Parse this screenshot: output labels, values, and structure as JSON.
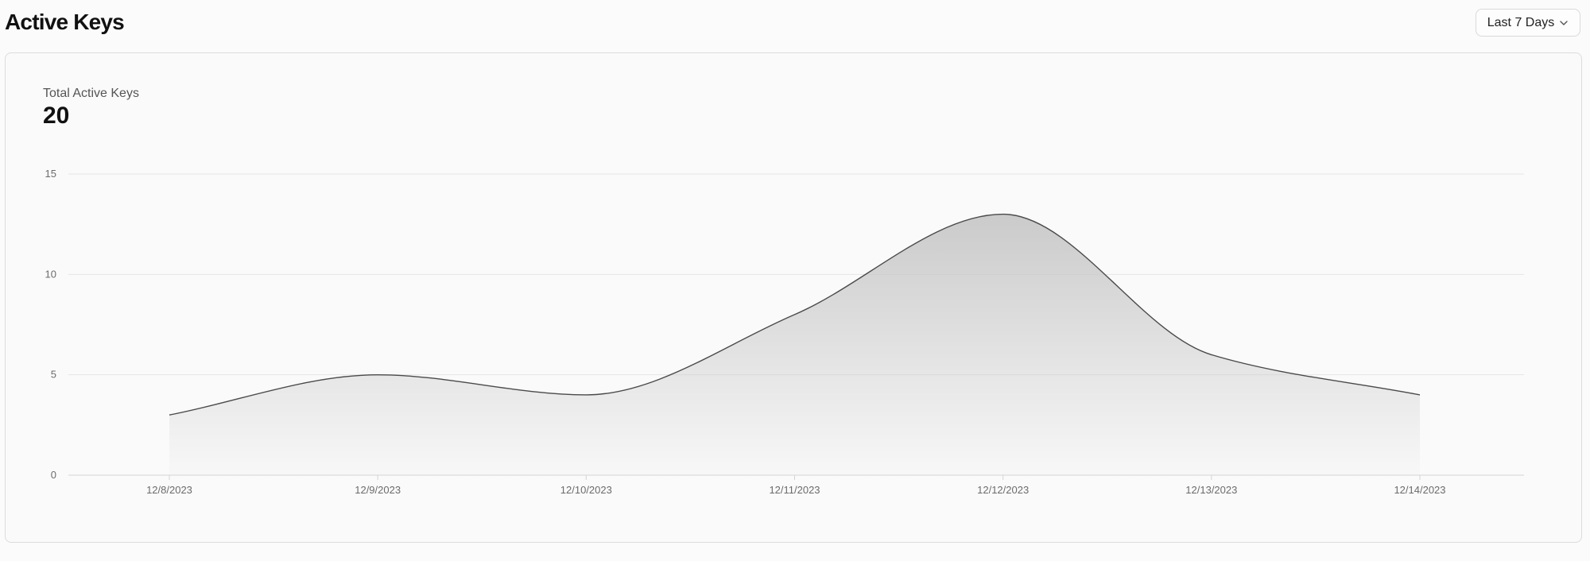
{
  "header": {
    "title": "Active Keys"
  },
  "range_selector": {
    "label": "Last 7 Days",
    "icon": "chevron-down-icon"
  },
  "summary": {
    "label": "Total Active Keys",
    "value": "20"
  },
  "chart_data": {
    "type": "area",
    "x": [
      "12/8/2023",
      "12/9/2023",
      "12/10/2023",
      "12/11/2023",
      "12/12/2023",
      "12/13/2023",
      "12/14/2023"
    ],
    "y_ticks": [
      0,
      5,
      10,
      15
    ],
    "ylim": [
      0,
      15
    ],
    "grid": true,
    "series": [
      {
        "values": [
          3,
          5,
          4,
          8,
          13,
          6,
          4
        ]
      }
    ],
    "colors": {
      "line": "#4a4a4a",
      "fill": "#bdbdbd",
      "grid": "#e6e6e6",
      "axis": "#d4d4d4"
    }
  }
}
